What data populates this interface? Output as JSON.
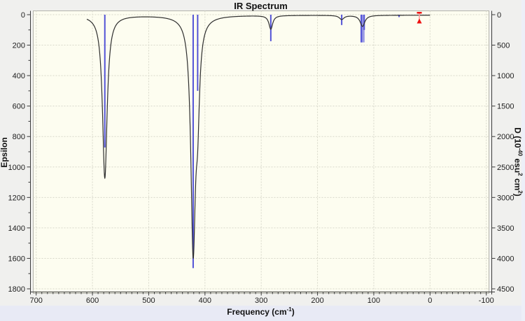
{
  "chart": {
    "title": "IR Spectrum",
    "x_axis_title_main": "Frequency (cm",
    "x_axis_title_sup": "-1",
    "x_axis_title_close": ")",
    "left_axis_title": "Epsilon",
    "right_axis_title_p1": "D (10",
    "right_axis_title_sup1": "-40",
    "right_axis_title_p2": " esu",
    "right_axis_title_sup2": "2",
    "right_axis_title_p3": " cm",
    "right_axis_title_sup3": "2",
    "right_axis_title_close": ")"
  },
  "chart_data": {
    "type": "line",
    "title": "IR Spectrum",
    "xlabel": "Frequency (cm-1)",
    "x_range": [
      700,
      -100
    ],
    "x_ticks": [
      700,
      600,
      500,
      400,
      300,
      200,
      100,
      0,
      -100
    ],
    "x_minor_step": 10,
    "left_axis": {
      "label": "Epsilon",
      "range": [
        0,
        1800
      ],
      "ticks": [
        0,
        200,
        400,
        600,
        800,
        1000,
        1200,
        1400,
        1600,
        1800
      ],
      "minor_step": 100,
      "direction": "increasing-downward"
    },
    "right_axis": {
      "label": "D (10-40 esu2 cm2)",
      "range": [
        0,
        4500
      ],
      "ticks": [
        0,
        500,
        1000,
        1500,
        2000,
        2500,
        3000,
        3500,
        4000,
        4500
      ],
      "direction": "increasing-downward"
    },
    "grid": "dashed both axes every major tick",
    "curve": {
      "name": "epsilon-spectrum",
      "baseline": 3,
      "domain": [
        0,
        610
      ],
      "peaks": [
        {
          "frequency": 578,
          "epsilon": 1070,
          "gamma": 5.0
        },
        {
          "frequency": 421,
          "epsilon": 1500,
          "gamma": 5.0
        },
        {
          "frequency": 413,
          "epsilon": 480,
          "gamma": 4.0
        },
        {
          "frequency": 283,
          "epsilon": 90,
          "gamma": 4.0
        },
        {
          "frequency": 157,
          "epsilon": 27,
          "gamma": 5.0
        },
        {
          "frequency": 120,
          "epsilon": 73,
          "gamma": 5.0
        }
      ]
    },
    "sticks": {
      "name": "intensity-sticks-D",
      "values": [
        {
          "frequency": 578,
          "d": 2180,
          "w": 2,
          "light": false
        },
        {
          "frequency": 421,
          "d": 4160,
          "w": 2,
          "light": false
        },
        {
          "frequency": 413,
          "d": 1250,
          "w": 2,
          "light": false
        },
        {
          "frequency": 283,
          "d": 435,
          "w": 2,
          "light": false
        },
        {
          "frequency": 157,
          "d": 170,
          "w": 2,
          "light": false
        },
        {
          "frequency": 120,
          "d": 455,
          "w": 6,
          "light": true
        },
        {
          "frequency": 122,
          "d": 455,
          "w": 2,
          "light": false
        },
        {
          "frequency": 117,
          "d": 250,
          "w": 2,
          "light": false
        },
        {
          "frequency": 55,
          "d": 40,
          "w": 2,
          "light": false
        }
      ]
    },
    "marker": {
      "frequency": 19,
      "type": "draggable-range-marker"
    }
  },
  "colors": {
    "plot_background": "#fdfdf0",
    "outer_background": "#f0f0ee",
    "bottom_strip": "#e8eaf5",
    "grid": "#d8d8ca",
    "curve": "#2e2e2e",
    "stick": "#5252d6",
    "stick_light": "#9c9ce4",
    "axis": "#3a3a3a",
    "frame": "#b4b4ac",
    "tick_label": "#1d1d1d",
    "marker_red": "#ee1111",
    "marker_pink": "#ff9f9f"
  }
}
